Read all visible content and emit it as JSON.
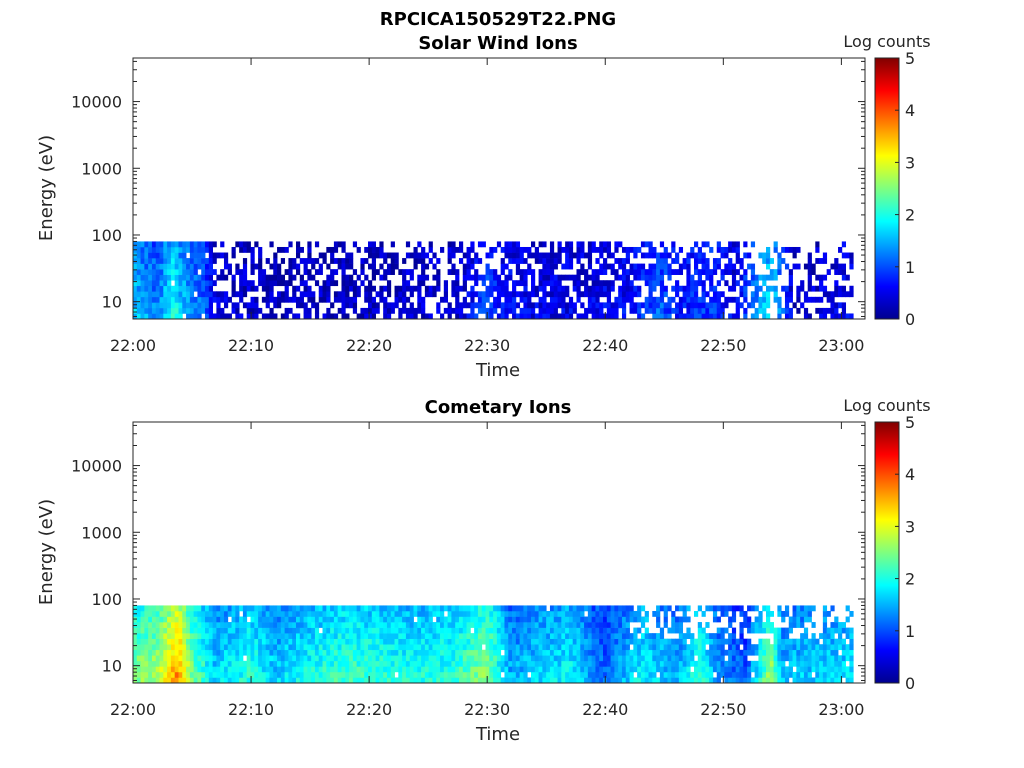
{
  "figure": {
    "title": "RPCICA150529T22.PNG"
  },
  "chart_data": [
    {
      "type": "heatmap",
      "title": "Solar Wind Ions",
      "xlabel": "Time",
      "ylabel": "Energy (eV)",
      "x_tick_labels": [
        "22:00",
        "22:10",
        "22:20",
        "22:30",
        "22:40",
        "22:50",
        "23:00"
      ],
      "xlim_minutes": [
        0,
        62
      ],
      "y_scale": "log",
      "y_tick_labels": [
        "10",
        "100",
        "1000",
        "10000"
      ],
      "ylim": [
        5.5,
        45000
      ],
      "data_energy_range": [
        5.5,
        80
      ],
      "colorbar": {
        "label": "Log counts",
        "ticks": [
          "0",
          "1",
          "2",
          "3",
          "4",
          "5"
        ],
        "range": [
          0,
          5
        ],
        "colormap": "jet"
      },
      "intensity_profile_minutes": [
        [
          0,
          1.6
        ],
        [
          1,
          1.4
        ],
        [
          2,
          1.2
        ],
        [
          3,
          1.7
        ],
        [
          3.5,
          2.0
        ],
        [
          4,
          1.6
        ],
        [
          5,
          1.3
        ],
        [
          6,
          1.1
        ],
        [
          7,
          0.5
        ],
        [
          9,
          0.4
        ],
        [
          12,
          0.3
        ],
        [
          16,
          0.3
        ],
        [
          20,
          0.3
        ],
        [
          25,
          0.4
        ],
        [
          28,
          0.4
        ],
        [
          30,
          1.0
        ],
        [
          31,
          0.7
        ],
        [
          34,
          0.5
        ],
        [
          38,
          0.5
        ],
        [
          42,
          0.6
        ],
        [
          44.5,
          1.1
        ],
        [
          46,
          0.7
        ],
        [
          49,
          0.9
        ],
        [
          51,
          0.5
        ],
        [
          54,
          1.8
        ],
        [
          56,
          0.3
        ],
        [
          59,
          0.5
        ],
        [
          61.5,
          0.6
        ]
      ],
      "sparsity": "many empty (white) bins, especially above 30 eV after 22:07"
    },
    {
      "type": "heatmap",
      "title": "Cometary Ions",
      "xlabel": "Time",
      "ylabel": "Energy (eV)",
      "x_tick_labels": [
        "22:00",
        "22:10",
        "22:20",
        "22:30",
        "22:40",
        "22:50",
        "23:00"
      ],
      "xlim_minutes": [
        0,
        62
      ],
      "y_scale": "log",
      "y_tick_labels": [
        "10",
        "100",
        "1000",
        "10000"
      ],
      "ylim": [
        5.5,
        45000
      ],
      "data_energy_range": [
        5.5,
        80
      ],
      "colorbar": {
        "label": "Log counts",
        "ticks": [
          "0",
          "1",
          "2",
          "3",
          "4",
          "5"
        ],
        "range": [
          0,
          5
        ],
        "colormap": "jet"
      },
      "intensity_profile_minutes": [
        [
          0,
          2.4
        ],
        [
          2,
          2.6
        ],
        [
          3.8,
          3.6
        ],
        [
          5,
          2.4
        ],
        [
          7,
          1.6
        ],
        [
          10,
          2.0
        ],
        [
          12,
          1.6
        ],
        [
          15,
          1.9
        ],
        [
          18,
          2.1
        ],
        [
          21,
          2.0
        ],
        [
          24,
          1.9
        ],
        [
          27,
          2.0
        ],
        [
          30,
          2.5
        ],
        [
          32,
          1.4
        ],
        [
          34,
          1.6
        ],
        [
          37,
          1.8
        ],
        [
          40,
          1.1
        ],
        [
          43,
          1.8
        ],
        [
          46,
          1.4
        ],
        [
          48,
          2.0
        ],
        [
          50,
          1.2
        ],
        [
          52,
          1.0
        ],
        [
          54,
          2.6
        ],
        [
          55,
          1.5
        ],
        [
          58,
          1.6
        ],
        [
          61.5,
          1.7
        ]
      ],
      "sparsity": "mostly filled; empty bins above 30 eV after 22:43"
    }
  ]
}
